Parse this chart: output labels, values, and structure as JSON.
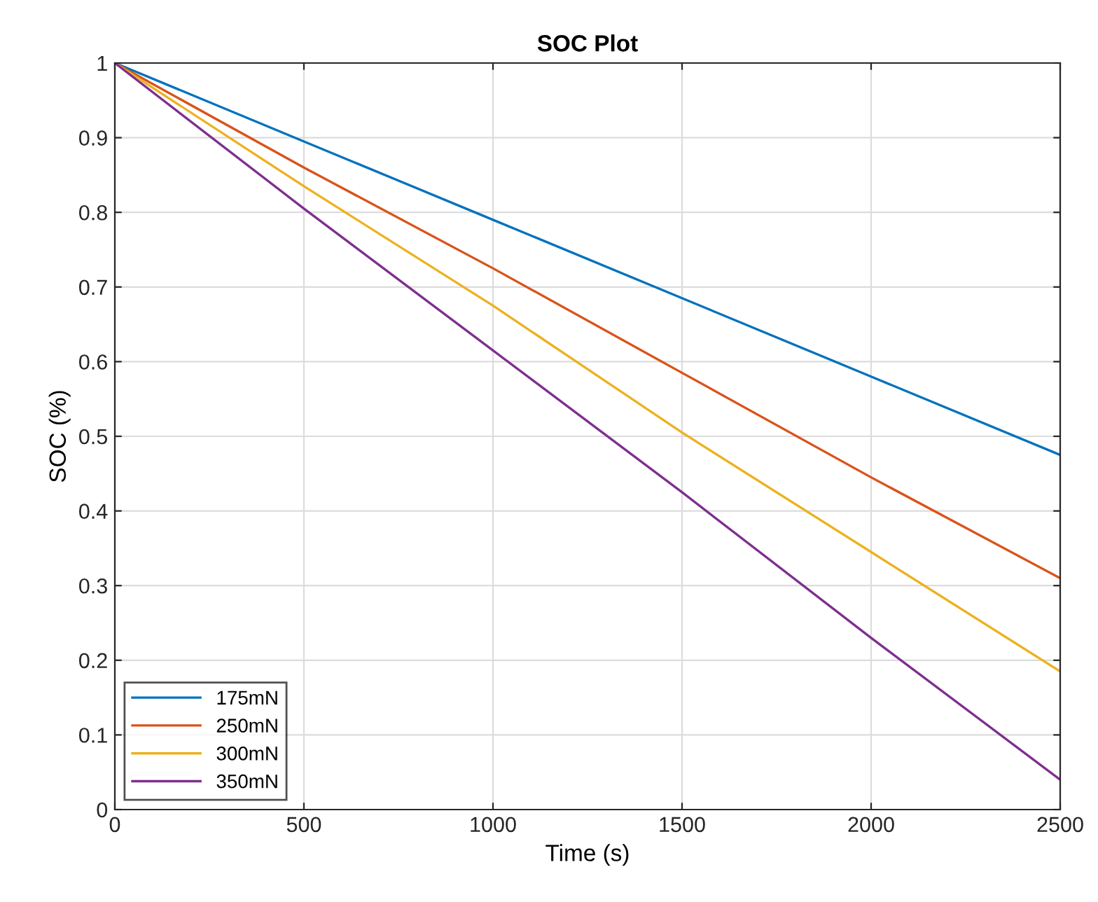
{
  "chart_data": {
    "type": "line",
    "title": "SOC Plot",
    "xlabel": "Time (s)",
    "ylabel": "SOC (%)",
    "x": [
      0,
      500,
      1000,
      1500,
      2000,
      2500
    ],
    "series": [
      {
        "name": "175mN",
        "color": "#0072bd",
        "values": [
          1,
          0.895,
          0.79,
          0.685,
          0.58,
          0.475
        ]
      },
      {
        "name": "250mN",
        "color": "#d95319",
        "values": [
          1,
          0.86,
          0.725,
          0.585,
          0.445,
          0.31
        ]
      },
      {
        "name": "300mN",
        "color": "#edb120",
        "values": [
          1,
          0.835,
          0.675,
          0.505,
          0.345,
          0.185
        ]
      },
      {
        "name": "350mN",
        "color": "#7e2f8e",
        "values": [
          1,
          0.805,
          0.615,
          0.425,
          0.23,
          0.04
        ]
      }
    ],
    "xlim": [
      0,
      2500
    ],
    "xticks": [
      0,
      500,
      1000,
      1500,
      2000,
      2500
    ],
    "ylim": [
      0,
      1
    ],
    "yticks": [
      0,
      0.1,
      0.2,
      0.3,
      0.4,
      0.5,
      0.6,
      0.7,
      0.8,
      0.9,
      1
    ],
    "grid": true,
    "legend": "bottom left",
    "marker": "none",
    "line_style": "solid"
  }
}
